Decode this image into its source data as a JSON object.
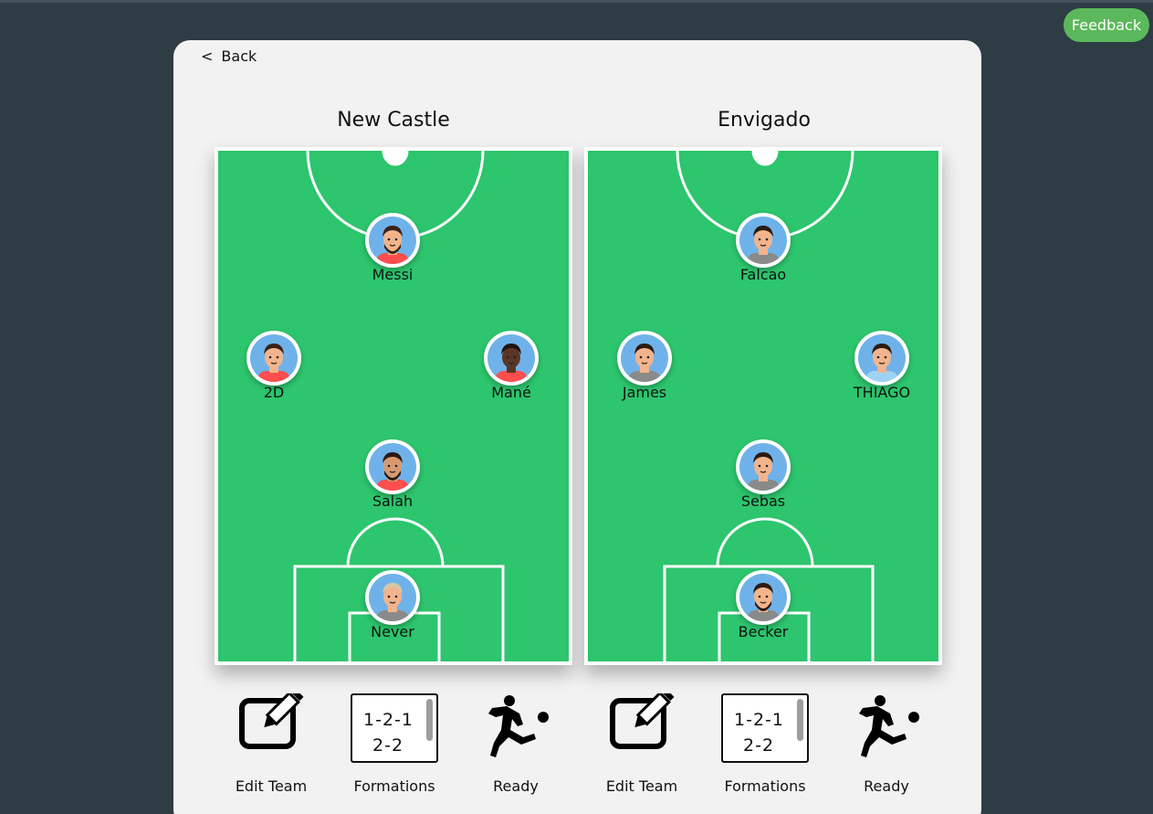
{
  "feedback_label": "Feedback",
  "back_label": "Back",
  "teams": [
    {
      "name": "New Castle",
      "players": [
        {
          "name": "Messi",
          "shirt": "#ff4e4e",
          "skin": "#f2b48c",
          "hair": "#3a2318",
          "beard": true
        },
        {
          "name": "2D",
          "shirt": "#ff4e4e",
          "skin": "#f2b48c",
          "hair": "#3a2318",
          "beard": false
        },
        {
          "name": "Mané",
          "shirt": "#ff4e4e",
          "skin": "#5b3626",
          "hair": "#1e1410",
          "beard": false
        },
        {
          "name": "Salah",
          "shirt": "#ff4e4e",
          "skin": "#d79a72",
          "hair": "#2b1a12",
          "beard": true
        },
        {
          "name": "Never",
          "shirt": "#8a8a8a",
          "skin": "#f2b48c",
          "hair": "#d9c6a5",
          "beard": false
        }
      ],
      "actions": {
        "edit": "Edit Team",
        "formations": "Formations",
        "ready": "Ready"
      },
      "formation_options": [
        "1-2-1",
        "2-2"
      ]
    },
    {
      "name": "Envigado",
      "players": [
        {
          "name": "Falcao",
          "shirt": "#8a8a8a",
          "skin": "#f2b48c",
          "hair": "#2b1a12",
          "beard": false
        },
        {
          "name": "James",
          "shirt": "#8a8a8a",
          "skin": "#f2b48c",
          "hair": "#2b1a12",
          "beard": false
        },
        {
          "name": "THIAGO",
          "shirt": "#9fd3f2",
          "skin": "#f2b48c",
          "hair": "#2b1a12",
          "beard": false
        },
        {
          "name": "Sebas",
          "shirt": "#8a8a8a",
          "skin": "#f2b48c",
          "hair": "#2b1a12",
          "beard": false
        },
        {
          "name": "Becker",
          "shirt": "#8a8a8a",
          "skin": "#f2b48c",
          "hair": "#2b1a12",
          "beard": true
        }
      ],
      "actions": {
        "edit": "Edit Team",
        "formations": "Formations",
        "ready": "Ready"
      },
      "formation_options": [
        "1-2-1",
        "2-2"
      ]
    }
  ],
  "colors": {
    "pitch": "#2dc56d",
    "feedback": "#5cb85c",
    "background": "#2e3c44"
  }
}
